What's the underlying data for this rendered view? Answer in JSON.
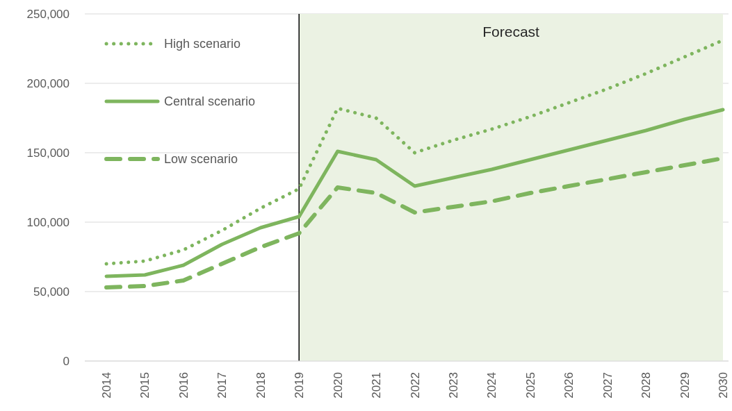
{
  "chart_data": {
    "type": "line",
    "categories": [
      "2014",
      "2015",
      "2016",
      "2017",
      "2018",
      "2019",
      "2020",
      "2021",
      "2022",
      "2023",
      "2024",
      "2025",
      "2026",
      "2027",
      "2028",
      "2029",
      "2030"
    ],
    "series": [
      {
        "name": "High scenario",
        "color": "#7eb55e",
        "line_style": "dotted",
        "values": [
          70000,
          72000,
          80000,
          94000,
          110000,
          124000,
          182000,
          175000,
          150000,
          159000,
          167000,
          176000,
          186000,
          196000,
          207000,
          219000,
          231000
        ]
      },
      {
        "name": "Central scenario",
        "color": "#7eb55e",
        "line_style": "solid",
        "values": [
          61000,
          62000,
          69000,
          84000,
          96000,
          104000,
          151000,
          145000,
          126000,
          132000,
          138000,
          145000,
          152000,
          159000,
          166000,
          174000,
          181000
        ]
      },
      {
        "name": "Low scenario",
        "color": "#7eb55e",
        "line_style": "dashed",
        "values": [
          53000,
          54000,
          58000,
          70000,
          82000,
          92000,
          125000,
          121000,
          107000,
          111000,
          115000,
          121000,
          126000,
          131000,
          136000,
          141000,
          146000
        ]
      }
    ],
    "ylim": [
      0,
      250000
    ],
    "yticks": [
      0,
      {
        "value": 50000,
        "label": "50,000"
      },
      {
        "value": 100000,
        "label": "100,000"
      },
      {
        "value": 150000,
        "label": "150,000"
      },
      {
        "value": 200000,
        "label": "200,000"
      },
      {
        "value": 250000,
        "label": "250,000"
      }
    ],
    "grid": "y",
    "legend": "top left",
    "ref_lines": [
      {
        "axis": "x",
        "value": "2019",
        "color": "#000000"
      }
    ],
    "bands": [
      {
        "axis": "x",
        "from": "2019",
        "to": "2030",
        "label": "Forecast",
        "color": "#ebf2e3"
      }
    ]
  }
}
